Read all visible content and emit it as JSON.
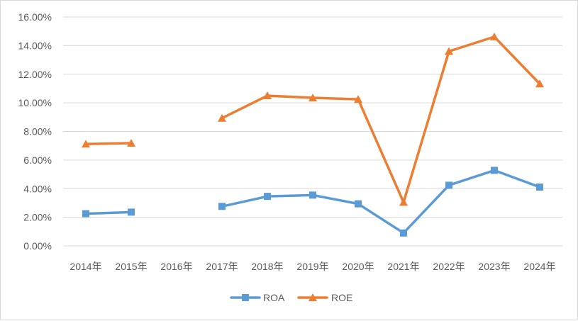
{
  "chart_data": {
    "type": "line",
    "categories": [
      "2014年",
      "2015年",
      "2016年",
      "2017年",
      "2018年",
      "2019年",
      "2020年",
      "2021年",
      "2022年",
      "2023年",
      "2024年"
    ],
    "series": [
      {
        "name": "ROA",
        "color": "#5b9bd5",
        "marker": "square",
        "values": [
          0.0225,
          0.0236,
          null,
          0.0276,
          0.0346,
          0.0355,
          0.0294,
          0.009,
          0.0424,
          0.0528,
          0.0411
        ]
      },
      {
        "name": "ROE",
        "color": "#ed7d31",
        "marker": "triangle",
        "values": [
          0.0712,
          0.0718,
          null,
          0.0893,
          0.105,
          0.1035,
          0.1025,
          0.0305,
          0.136,
          0.1462,
          0.1133
        ]
      }
    ],
    "y_ticks": [
      "0.00%",
      "2.00%",
      "4.00%",
      "6.00%",
      "8.00%",
      "10.00%",
      "12.00%",
      "14.00%",
      "16.00%"
    ],
    "ylim": [
      0,
      0.16
    ],
    "grid": true,
    "legend_position": "bottom",
    "title": "",
    "xlabel": "",
    "ylabel": ""
  }
}
